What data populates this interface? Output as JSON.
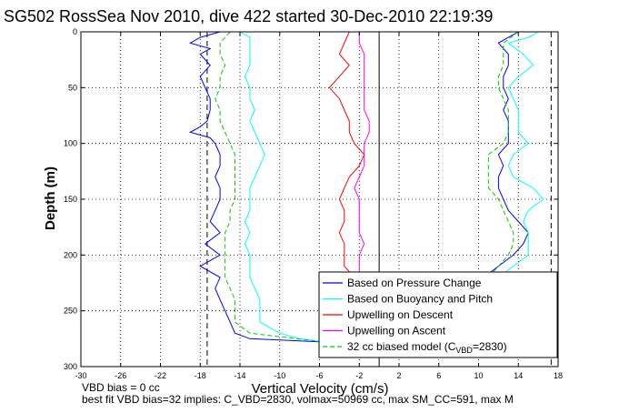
{
  "chart_data": {
    "type": "line",
    "title": "SG502 RossSea Nov 2010, dive 422 started 30-Dec-2010 22:19:39",
    "xlabel": "Vertical Velocity (cm/s)",
    "ylabel": "Depth (m)",
    "xlim": [
      -30,
      18
    ],
    "ylim": [
      300,
      0
    ],
    "y_axis_reversed": true,
    "grid": "dotted",
    "legend_position": "bottom-right",
    "xticks": [
      "-30",
      "-26",
      "-22",
      "-18",
      "-14",
      "-10",
      "-6",
      "-2",
      "2",
      "6",
      "10",
      "14",
      "18"
    ],
    "yticks": [
      "0",
      "50",
      "100",
      "150",
      "200",
      "250",
      "300"
    ],
    "vertical_lines": [
      {
        "x": -17.3,
        "style": "dashed",
        "color": "#000000"
      },
      {
        "x": 0,
        "style": "solid",
        "color": "#000000"
      },
      {
        "x": 17.3,
        "style": "dashed",
        "color": "#000000"
      }
    ],
    "series": [
      {
        "name": "Based on Pressure Change",
        "color": "#0000ff",
        "descent": {
          "depth": [
            0,
            5,
            10,
            15,
            20,
            30,
            40,
            50,
            60,
            70,
            80,
            85,
            90,
            95,
            100,
            110,
            120,
            130,
            140,
            150,
            160,
            170,
            180,
            190,
            200,
            210,
            220,
            230,
            240,
            250,
            260,
            270,
            275,
            278
          ],
          "velocity": [
            -16,
            -18,
            -19,
            -17,
            -18,
            -17,
            -18,
            -17.5,
            -17,
            -17,
            -17.3,
            -18,
            -19,
            -17,
            -16.5,
            -16,
            -16,
            -16.5,
            -16,
            -16,
            -16.5,
            -17,
            -16,
            -17.5,
            -16,
            -18,
            -16,
            -16.5,
            -16,
            -15.5,
            -15,
            -14.5,
            -13,
            -5.5
          ]
        },
        "ascent": {
          "depth": [
            220,
            210,
            200,
            190,
            180,
            170,
            160,
            150,
            140,
            130,
            120,
            110,
            100,
            90,
            80,
            70,
            60,
            50,
            40,
            30,
            20,
            10,
            5,
            0
          ],
          "velocity": [
            10.5,
            12,
            13.5,
            14.5,
            15,
            14,
            13,
            12.5,
            12,
            12,
            12.5,
            12,
            13,
            13,
            13,
            12.5,
            13,
            12.5,
            12.5,
            13,
            13,
            12,
            13,
            14
          ]
        }
      },
      {
        "name": "Based on Buoyancy and Pitch",
        "color": "#00ffff",
        "descent": {
          "depth": [
            0,
            5,
            10,
            15,
            20,
            30,
            40,
            50,
            60,
            70,
            80,
            90,
            100,
            110,
            120,
            130,
            140,
            150,
            160,
            170,
            180,
            190,
            200,
            210,
            220,
            230,
            240,
            250,
            260,
            270,
            275,
            278
          ],
          "velocity": [
            -14,
            -13,
            -13,
            -13,
            -13,
            -13,
            -13.5,
            -13,
            -13,
            -12.5,
            -13,
            -12.5,
            -12,
            -11.5,
            -12,
            -12.5,
            -13,
            -13,
            -13,
            -13.5,
            -13,
            -13.5,
            -13,
            -13,
            -13,
            -12.5,
            -12,
            -12,
            -12,
            -10,
            -8,
            -5.5
          ]
        },
        "ascent": {
          "depth": [
            220,
            210,
            200,
            190,
            180,
            170,
            160,
            150,
            140,
            130,
            120,
            110,
            100,
            90,
            80,
            70,
            60,
            50,
            40,
            30,
            20,
            10,
            5,
            0
          ],
          "velocity": [
            12,
            13.5,
            15,
            15,
            15,
            14.5,
            15,
            16.5,
            15.5,
            13.5,
            13,
            13.5,
            15,
            14,
            14,
            14,
            13.5,
            13,
            14,
            15.5,
            14.5,
            13,
            15,
            16
          ]
        }
      },
      {
        "name": "Upwelling on Descent",
        "color": "#ff0000",
        "depth": [
          0,
          10,
          20,
          30,
          40,
          50,
          60,
          70,
          80,
          90,
          100,
          110,
          120,
          130,
          140,
          150,
          160,
          170,
          180,
          190,
          200,
          210,
          215
        ],
        "velocity": [
          -3,
          -3.5,
          -4,
          -3,
          -4,
          -5,
          -4,
          -3.5,
          -3,
          -3,
          -2.5,
          -1.5,
          -2,
          -3,
          -3.5,
          -4,
          -3.5,
          -3.5,
          -4,
          -3.5,
          -3.5,
          -3.5,
          -3
        ]
      },
      {
        "name": "Upwelling on Ascent",
        "color": "#ff00ff",
        "depth": [
          0,
          10,
          20,
          30,
          40,
          50,
          60,
          70,
          80,
          90,
          100,
          110,
          120,
          130,
          140,
          150,
          160,
          170,
          180,
          190,
          200,
          210,
          215
        ],
        "velocity": [
          -2,
          -2,
          -1.5,
          -1.5,
          -1.5,
          -1.5,
          -1.5,
          -1.5,
          -1,
          -1,
          -1.5,
          -1.5,
          -1.5,
          -2,
          -2.5,
          -2,
          -2,
          -2,
          -2,
          -1.5,
          -2,
          -2,
          -2
        ]
      },
      {
        "name": "32 cc biased model (C_VBD=2830)",
        "color": "#00cc00",
        "style": "dashed",
        "descent": {
          "depth": [
            0,
            10,
            20,
            30,
            40,
            50,
            60,
            70,
            80,
            90,
            100,
            110,
            120,
            130,
            140,
            150,
            160,
            170,
            180,
            190,
            200,
            210,
            220,
            230,
            240,
            250,
            260,
            270,
            278
          ],
          "velocity": [
            -15,
            -16,
            -16,
            -15.5,
            -16,
            -16,
            -16.5,
            -16,
            -16,
            -15.5,
            -15,
            -14.5,
            -14.5,
            -14.5,
            -14.5,
            -14.5,
            -15,
            -15,
            -15.5,
            -15.5,
            -15.5,
            -15.5,
            -15.5,
            -15,
            -14.5,
            -14.5,
            -14.5,
            -13,
            -5.5
          ]
        },
        "ascent": {
          "depth": [
            220,
            210,
            200,
            190,
            180,
            170,
            160,
            150,
            140,
            130,
            120,
            110,
            100,
            90,
            80,
            70,
            60,
            50,
            40,
            30,
            20,
            10,
            0
          ],
          "velocity": [
            11,
            12,
            13,
            13.5,
            13.5,
            13,
            12.5,
            12,
            11,
            11,
            11,
            11,
            12.5,
            13,
            13,
            13,
            12.5,
            12,
            12,
            12.5,
            12.5,
            12.5,
            14
          ]
        }
      }
    ],
    "legend": [
      {
        "label": "Based on Pressure Change",
        "color": "#0000ff",
        "style": "solid"
      },
      {
        "label": "Based on Buoyancy and Pitch",
        "color": "#00ffff",
        "style": "solid"
      },
      {
        "label": "Upwelling on Descent",
        "color": "#ff0000",
        "style": "solid"
      },
      {
        "label": "Upwelling on Ascent",
        "color": "#ff00ff",
        "style": "solid"
      },
      {
        "label": "32 cc biased model (C",
        "sub": "VBD",
        "suffix": "=2830)",
        "color": "#00cc00",
        "style": "dashed"
      }
    ]
  },
  "footnotes": {
    "line1": "VBD bias = 0 cc",
    "line2": "best fit VBD bias=32 implies: C_VBD=2830, volmax=50969 cc, max SM_CC=591, max M"
  }
}
